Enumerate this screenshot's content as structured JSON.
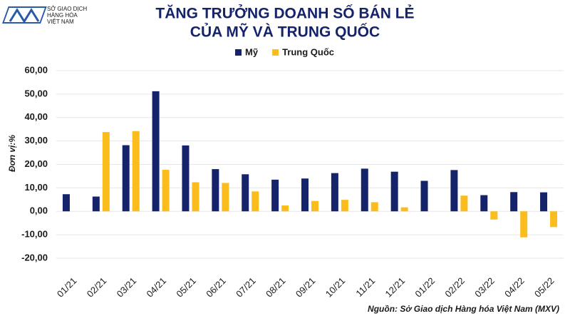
{
  "logo": [
    "SỞ GIAO DỊCH",
    "HÀNG HÓA",
    "VIỆT NAM"
  ],
  "chart_data": {
    "type": "bar",
    "title": [
      "TĂNG TRƯỞNG DOANH SỐ BÁN LẺ",
      "CỦA MỸ VÀ TRUNG QUỐC"
    ],
    "y_label": "Đơn vị:%",
    "source": "Nguồn: Sở Giao dịch Hàng hóa Việt Nam (MXV)",
    "categories": [
      "01/21",
      "02/21",
      "03/21",
      "04/21",
      "05/21",
      "06/21",
      "07/21",
      "08/21",
      "09/21",
      "10/21",
      "11/21",
      "12/21",
      "01/22",
      "02/22",
      "03/22",
      "04/22",
      "05/22"
    ],
    "series": [
      {
        "name": "Mỹ",
        "color": "#15236b",
        "values": [
          7.3,
          6.3,
          28.2,
          51.2,
          28.1,
          18,
          15.8,
          13.5,
          14,
          16.3,
          18.2,
          16.9,
          13,
          17.6,
          6.9,
          8.2,
          8.1
        ]
      },
      {
        "name": "Trung Quốc",
        "color": "#fbbd1e",
        "values": [
          null,
          33.8,
          34.2,
          17.7,
          12.4,
          12.1,
          8.5,
          2.5,
          4.4,
          4.9,
          3.9,
          1.7,
          null,
          6.7,
          -3.5,
          -11.1,
          -6.7
        ]
      }
    ],
    "ylim": [
      -20,
      60
    ],
    "yticks": [
      {
        "value": -20,
        "label": "-20,00"
      },
      {
        "value": -10,
        "label": "-10,00"
      },
      {
        "value": 0,
        "label": "0,00"
      },
      {
        "value": 10,
        "label": "10,00"
      },
      {
        "value": 20,
        "label": "20,00"
      },
      {
        "value": 30,
        "label": "30,00"
      },
      {
        "value": 40,
        "label": "40,00"
      },
      {
        "value": 50,
        "label": "50,00"
      },
      {
        "value": 60,
        "label": "60,00"
      }
    ],
    "grid": true
  }
}
